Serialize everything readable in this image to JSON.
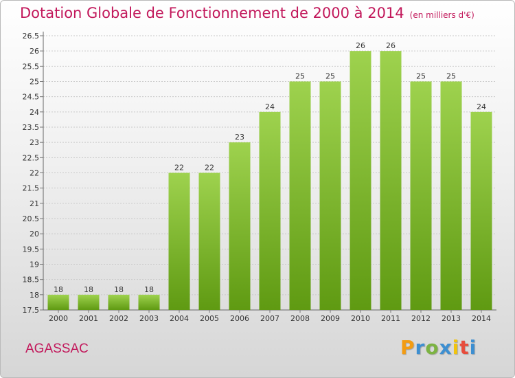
{
  "chart_data": {
    "type": "bar",
    "title": "Dotation Globale de Fonctionnement de 2000 à 2014",
    "subtitle": "(en milliers d'€)",
    "categories": [
      "2000",
      "2001",
      "2002",
      "2003",
      "2004",
      "2005",
      "2006",
      "2007",
      "2008",
      "2009",
      "2010",
      "2011",
      "2012",
      "2013",
      "2014"
    ],
    "values": [
      18,
      18,
      18,
      18,
      22,
      22,
      23,
      24,
      25,
      25,
      26,
      26,
      25,
      25,
      24
    ],
    "yticks": [
      "17.5",
      "18",
      "18.5",
      "19",
      "19.5",
      "20",
      "20.5",
      "21",
      "21.5",
      "22",
      "22.5",
      "23",
      "23.5",
      "24",
      "24.5",
      "25",
      "25.5",
      "26",
      "26.5"
    ],
    "ylim": [
      17.5,
      26.5
    ],
    "xlabel": "",
    "ylabel": "",
    "grid": true,
    "bar_color_top": "#9ed24e",
    "bar_color_bottom": "#5f9a12"
  },
  "commune": "AGASSAC",
  "brand": {
    "letters": [
      "P",
      "r",
      "o",
      "x",
      "i",
      "t",
      "i"
    ],
    "colors": [
      "#f39c12",
      "#3d8fd1",
      "#7cb342",
      "#3d8fd1",
      "#f1c40f",
      "#e74c3c",
      "#3d8fd1"
    ]
  },
  "colors": {
    "accent": "#c2185b"
  }
}
